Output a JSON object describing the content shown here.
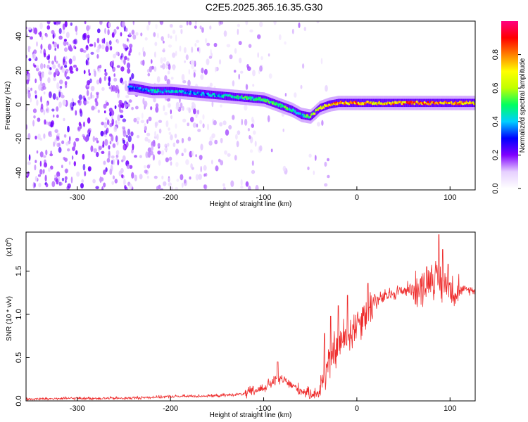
{
  "title": "C2E5.2025.365.16.35.G30",
  "chart_data": [
    {
      "type": "heatmap",
      "xlabel": "Height of straight line (km)",
      "ylabel": "Frequency (Hz)",
      "xlim": [
        -355,
        127
      ],
      "ylim": [
        -50,
        49
      ],
      "xticks": [
        -300,
        -200,
        -100,
        0,
        100
      ],
      "yticks": [
        -40,
        -20,
        0,
        20,
        40
      ],
      "colorbar": {
        "label": "Normalized spectral amplitude",
        "range": [
          0,
          1
        ],
        "ticks": [
          "0.0",
          "0.2",
          "0.4",
          "0.6",
          "0.8"
        ],
        "colors": [
          "#ffffff",
          "#e6d0ff",
          "#8000ff",
          "#0000ff",
          "#00d0ff",
          "#00ff60",
          "#c0ff00",
          "#ffff00",
          "#ff8000",
          "#ff0000",
          "#ff0080"
        ]
      },
      "ridge": [
        {
          "x": -240,
          "f": 10,
          "a": 0.35
        },
        {
          "x": -220,
          "f": 8,
          "a": 0.45
        },
        {
          "x": -200,
          "f": 8,
          "a": 0.45
        },
        {
          "x": -180,
          "f": 7,
          "a": 0.4
        },
        {
          "x": -160,
          "f": 6,
          "a": 0.4
        },
        {
          "x": -140,
          "f": 5,
          "a": 0.45
        },
        {
          "x": -120,
          "f": 4,
          "a": 0.5
        },
        {
          "x": -100,
          "f": 3,
          "a": 0.5
        },
        {
          "x": -90,
          "f": 1,
          "a": 0.55
        },
        {
          "x": -80,
          "f": -1,
          "a": 0.55
        },
        {
          "x": -70,
          "f": -3,
          "a": 0.5
        },
        {
          "x": -60,
          "f": -6,
          "a": 0.45
        },
        {
          "x": -50,
          "f": -7,
          "a": 0.6
        },
        {
          "x": -40,
          "f": -2,
          "a": 0.7
        },
        {
          "x": -30,
          "f": 0,
          "a": 0.75
        },
        {
          "x": -20,
          "f": 1,
          "a": 0.85
        },
        {
          "x": 0,
          "f": 1,
          "a": 0.85
        },
        {
          "x": 20,
          "f": 1,
          "a": 0.75
        },
        {
          "x": 50,
          "f": 1,
          "a": 0.85
        },
        {
          "x": 80,
          "f": 1,
          "a": 0.85
        },
        {
          "x": 100,
          "f": 1,
          "a": 0.8
        },
        {
          "x": 127,
          "f": 1,
          "a": 0.8
        }
      ]
    },
    {
      "type": "line",
      "xlabel": "Height of straight line (km)",
      "ylabel": "SNR (10 * v/v)",
      "yscale_label": "(x10",
      "yscale_exp": "4",
      "xlim": [
        -355,
        127
      ],
      "ylim": [
        0,
        1.95
      ],
      "xticks": [
        -300,
        -200,
        -100,
        0,
        100
      ],
      "yticks": [
        "0.0",
        "0.5",
        "1.0",
        "1.5"
      ],
      "color": "#ee2a2a",
      "series": [
        {
          "name": "SNR",
          "x": [
            -355,
            -300,
            -250,
            -200,
            -150,
            -120,
            -100,
            -90,
            -80,
            -70,
            -60,
            -50,
            -40,
            -35,
            -30,
            -20,
            -10,
            0,
            10,
            20,
            40,
            60,
            70,
            80,
            90,
            100,
            110,
            120,
            127
          ],
          "y": [
            0.02,
            0.03,
            0.03,
            0.05,
            0.06,
            0.08,
            0.15,
            0.22,
            0.25,
            0.18,
            0.12,
            0.08,
            0.1,
            0.3,
            0.45,
            0.65,
            0.75,
            0.9,
            1.05,
            1.15,
            1.25,
            1.3,
            1.3,
            1.45,
            1.35,
            1.3,
            1.28,
            1.28,
            1.28
          ]
        }
      ],
      "spikes": [
        {
          "x": -85,
          "y": 0.45
        },
        {
          "x": -35,
          "y": 0.78
        },
        {
          "x": -28,
          "y": 0.98
        },
        {
          "x": -20,
          "y": 1.1
        },
        {
          "x": -10,
          "y": 1.22
        },
        {
          "x": 12,
          "y": 1.36
        },
        {
          "x": 75,
          "y": 1.55
        },
        {
          "x": 88,
          "y": 1.92
        },
        {
          "x": 92,
          "y": 1.75
        },
        {
          "x": 98,
          "y": 1.58
        }
      ]
    }
  ]
}
